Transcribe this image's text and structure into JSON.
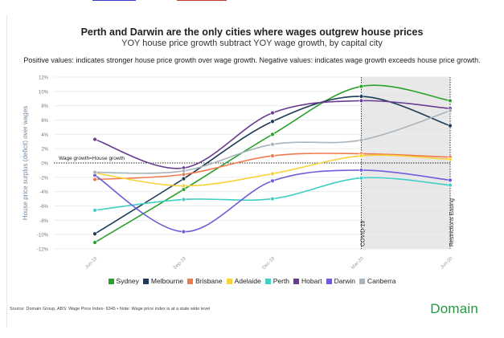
{
  "title": "Perth and Darwin are the only cities where wages outgrew house prices",
  "subtitle": "YOY house price growth subtract YOY wage growth, by capital city",
  "note": "Positive values: indicates stronger house price growth over wage growth. Negative values: indicates wage growth exceeds house price growth.",
  "source": "Source: Domain Group, ABS: Wage Price Index- 6345 • Note: Wage price index is at a state wide level",
  "logo": "Domain",
  "colors": {
    "sydney": "#2ca02c",
    "melbourne": "#1f3b57",
    "brisbane": "#f07a4f",
    "adelaide": "#f7d23a",
    "perth": "#40cfc4",
    "hobart": "#6a3d8f",
    "darwin": "#6b5ed8",
    "canberra": "#a8b4bc"
  },
  "chart_data": {
    "type": "line",
    "ylabel": "House price surplus (deficit) over wages",
    "ylim": [
      -12,
      12
    ],
    "yticks": [
      12,
      10,
      8,
      6,
      4,
      2,
      0,
      -2,
      -4,
      -6,
      -8,
      -10,
      -12
    ],
    "ytick_labels": [
      "12%",
      "10%",
      "8%",
      "6%",
      "4%",
      "2%",
      "0%",
      "-2%",
      "-4%",
      "-6%",
      "-8%",
      "-10%",
      "-12%"
    ],
    "categories": [
      "Jun-19",
      "Sep-19",
      "Dec-19",
      "Mar-20",
      "Jun-20"
    ],
    "baseline_label": "Wage growth=House growth",
    "shaded_region": {
      "from": "Mar-20",
      "to": "Jun-20"
    },
    "annotations": [
      {
        "label": "COVID-19",
        "at": "Mar-20"
      },
      {
        "label": "Restrictions Easing",
        "at": "Jun-20"
      }
    ],
    "series": [
      {
        "name": "Sydney",
        "key": "sydney",
        "values": [
          -11.1,
          -3.7,
          4.0,
          10.7,
          8.7
        ]
      },
      {
        "name": "Melbourne",
        "key": "melbourne",
        "values": [
          -9.9,
          -2.2,
          5.8,
          9.3,
          5.2
        ]
      },
      {
        "name": "Brisbane",
        "key": "brisbane",
        "values": [
          -2.3,
          -1.6,
          1.0,
          1.3,
          0.8
        ]
      },
      {
        "name": "Adelaide",
        "key": "adelaide",
        "values": [
          -1.4,
          -3.2,
          -1.5,
          1.0,
          0.5
        ]
      },
      {
        "name": "Perth",
        "key": "perth",
        "values": [
          -6.6,
          -5.1,
          -5.0,
          -2.1,
          -3.1
        ]
      },
      {
        "name": "Hobart",
        "key": "hobart",
        "values": [
          3.3,
          -0.7,
          7.0,
          8.7,
          7.6
        ]
      },
      {
        "name": "Darwin",
        "key": "darwin",
        "values": [
          -1.7,
          -9.6,
          -2.5,
          -1.0,
          -2.4
        ]
      },
      {
        "name": "Canberra",
        "key": "canberra",
        "values": [
          -1.3,
          -1.1,
          2.6,
          3.2,
          7.3
        ]
      }
    ]
  }
}
